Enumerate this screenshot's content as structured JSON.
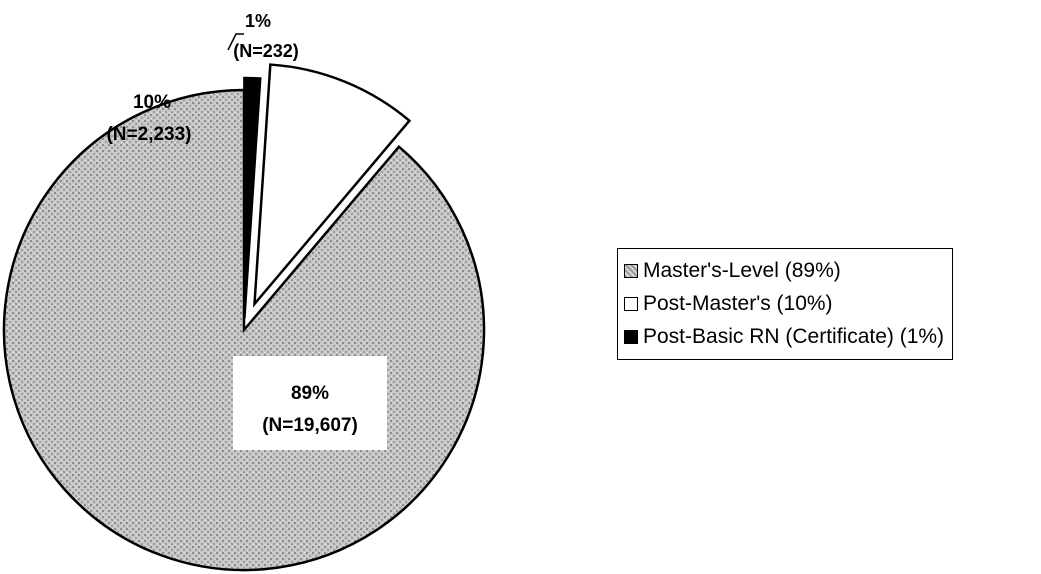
{
  "chart_data": {
    "type": "pie",
    "title": "",
    "slices": [
      {
        "name": "Master's-Level (89%)",
        "value": 19607,
        "percent_label": "89%",
        "n_label": "(N=19,607)",
        "color": "#c8c8c8",
        "pattern": "stipple",
        "exploded": false
      },
      {
        "name": "Post-Master's (10%)",
        "value": 2233,
        "percent_label": "10%",
        "n_label": "(N=2,233)",
        "color": "#ffffff",
        "pattern": "none",
        "exploded": true
      },
      {
        "name": "Post-Basic RN (Certificate) (1%)",
        "value": 232,
        "percent_label": "1%",
        "n_label": "(N=232)",
        "color": "#000000",
        "pattern": "none",
        "exploded": true
      }
    ],
    "legend_position": "right"
  }
}
